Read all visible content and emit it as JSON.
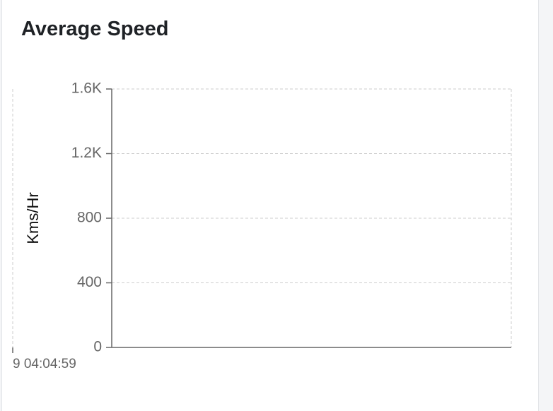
{
  "chart_data": {
    "type": "line",
    "title": "Average Speed",
    "y_label": "Kms/Hr",
    "categories": [
      "9 04:04:59"
    ],
    "ylim": [
      0,
      1600
    ],
    "yticks": [
      0,
      400,
      800,
      {
        "value": 1200,
        "label": "1.2K"
      },
      {
        "value": 1600,
        "label": "1.6K"
      }
    ],
    "grid": true
  }
}
